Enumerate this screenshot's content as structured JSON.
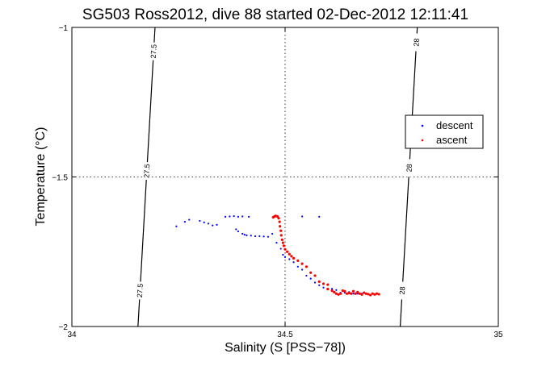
{
  "chart_data": {
    "type": "scatter",
    "title": "SG503 Ross2012, dive 88 started 02-Dec-2012 12:11:41",
    "xlabel": "Salinity (S [PSS−78])",
    "ylabel": "Temperature (°C)",
    "xlim": [
      34,
      35
    ],
    "ylim": [
      -2,
      -1
    ],
    "xticks": [
      34,
      34.5,
      35
    ],
    "xtick_labels": [
      "34",
      "34.5",
      "35"
    ],
    "yticks": [
      -2,
      -1.5,
      -1
    ],
    "ytick_labels": [
      "−2",
      "−1.5",
      "−1"
    ],
    "grid": "dotted",
    "legend_position": "right",
    "density_contours": [
      {
        "label": "27.5",
        "points": [
          [
            34.155,
            -2.0
          ],
          [
            34.195,
            -1.0
          ]
        ],
        "label_positions": [
          -1.08,
          -1.48,
          -1.88
        ]
      },
      {
        "label": "28",
        "points": [
          [
            34.77,
            -2.0
          ],
          [
            34.81,
            -1.0
          ]
        ],
        "label_positions": [
          -1.05,
          -1.47,
          -1.88
        ]
      }
    ],
    "series": [
      {
        "name": "descent",
        "color": "#0000ff",
        "points": [
          [
            34.245,
            -1.665
          ],
          [
            34.265,
            -1.65
          ],
          [
            34.275,
            -1.643
          ],
          [
            34.3,
            -1.647
          ],
          [
            34.31,
            -1.652
          ],
          [
            34.32,
            -1.656
          ],
          [
            34.33,
            -1.662
          ],
          [
            34.34,
            -1.66
          ],
          [
            34.36,
            -1.633
          ],
          [
            34.37,
            -1.632
          ],
          [
            34.38,
            -1.631
          ],
          [
            34.39,
            -1.633
          ],
          [
            34.4,
            -1.632
          ],
          [
            34.415,
            -1.633
          ],
          [
            34.54,
            -1.632
          ],
          [
            34.58,
            -1.633
          ],
          [
            34.385,
            -1.675
          ],
          [
            34.39,
            -1.682
          ],
          [
            34.4,
            -1.69
          ],
          [
            34.405,
            -1.693
          ],
          [
            34.41,
            -1.695
          ],
          [
            34.42,
            -1.696
          ],
          [
            34.43,
            -1.698
          ],
          [
            34.44,
            -1.698
          ],
          [
            34.45,
            -1.699
          ],
          [
            34.46,
            -1.7
          ],
          [
            34.47,
            -1.69
          ],
          [
            34.48,
            -1.72
          ],
          [
            34.49,
            -1.74
          ],
          [
            34.495,
            -1.76
          ],
          [
            34.5,
            -1.768
          ],
          [
            34.51,
            -1.775
          ],
          [
            34.52,
            -1.785
          ],
          [
            34.53,
            -1.8
          ],
          [
            34.54,
            -1.81
          ],
          [
            34.55,
            -1.83
          ],
          [
            34.56,
            -1.84
          ],
          [
            34.57,
            -1.853
          ],
          [
            34.58,
            -1.862
          ],
          [
            34.59,
            -1.87
          ],
          [
            34.6,
            -1.874
          ],
          [
            34.61,
            -1.874
          ],
          [
            34.62,
            -1.878
          ],
          [
            34.63,
            -1.887
          ],
          [
            34.64,
            -1.887
          ],
          [
            34.65,
            -1.885
          ],
          [
            34.66,
            -1.89
          ],
          [
            34.67,
            -1.89
          ],
          [
            34.68,
            -1.89
          ]
        ]
      },
      {
        "name": "ascent",
        "color": "#ff0000",
        "points": [
          [
            34.472,
            -1.635
          ],
          [
            34.475,
            -1.632
          ],
          [
            34.478,
            -1.63
          ],
          [
            34.482,
            -1.632
          ],
          [
            34.485,
            -1.638
          ],
          [
            34.487,
            -1.65
          ],
          [
            34.488,
            -1.665
          ],
          [
            34.49,
            -1.68
          ],
          [
            34.491,
            -1.695
          ],
          [
            34.493,
            -1.71
          ],
          [
            34.495,
            -1.72
          ],
          [
            34.497,
            -1.73
          ],
          [
            34.5,
            -1.742
          ],
          [
            34.505,
            -1.75
          ],
          [
            34.51,
            -1.758
          ],
          [
            34.515,
            -1.765
          ],
          [
            34.52,
            -1.772
          ],
          [
            34.53,
            -1.78
          ],
          [
            34.54,
            -1.79
          ],
          [
            34.55,
            -1.8
          ],
          [
            34.56,
            -1.82
          ],
          [
            34.57,
            -1.83
          ],
          [
            34.58,
            -1.85
          ],
          [
            34.59,
            -1.857
          ],
          [
            34.6,
            -1.86
          ],
          [
            34.6,
            -1.875
          ],
          [
            34.61,
            -1.88
          ],
          [
            34.615,
            -1.885
          ],
          [
            34.62,
            -1.89
          ],
          [
            34.625,
            -1.893
          ],
          [
            34.63,
            -1.89
          ],
          [
            34.635,
            -1.88
          ],
          [
            34.64,
            -1.882
          ],
          [
            34.645,
            -1.89
          ],
          [
            34.65,
            -1.888
          ],
          [
            34.655,
            -1.89
          ],
          [
            34.66,
            -1.882
          ],
          [
            34.665,
            -1.89
          ],
          [
            34.67,
            -1.885
          ],
          [
            34.675,
            -1.89
          ],
          [
            34.68,
            -1.893
          ],
          [
            34.685,
            -1.887
          ],
          [
            34.69,
            -1.89
          ],
          [
            34.695,
            -1.892
          ],
          [
            34.7,
            -1.895
          ],
          [
            34.705,
            -1.89
          ],
          [
            34.71,
            -1.893
          ],
          [
            34.715,
            -1.89
          ],
          [
            34.72,
            -1.892
          ]
        ]
      }
    ]
  }
}
